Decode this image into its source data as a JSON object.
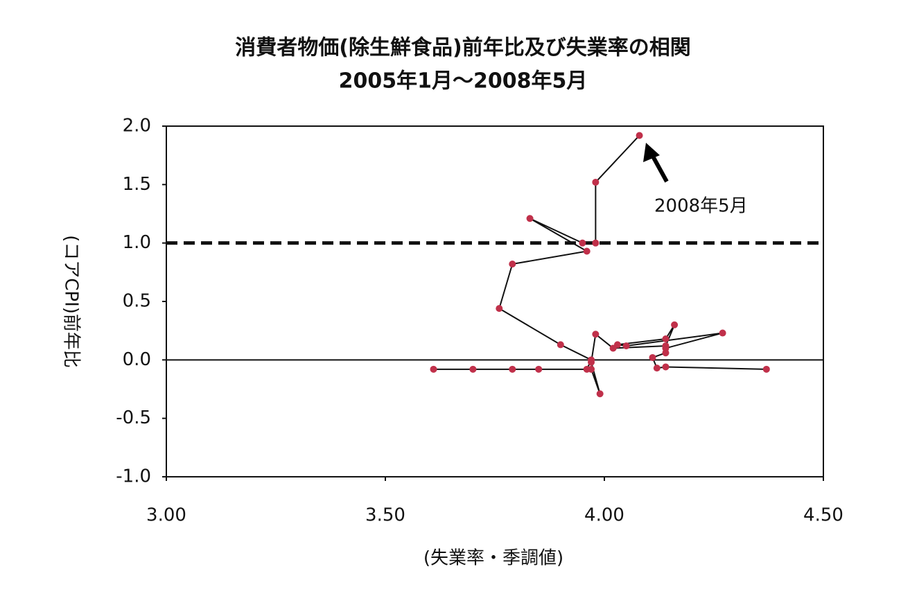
{
  "chart_data": {
    "type": "scatter",
    "title": "消費者物価(除生鮮食品)前年比及び失業率の相関",
    "subtitle": "2005年1月～2008年5月",
    "x_label": "(失業率・季調値)",
    "y_label": "(コアCPI)前年比",
    "annotation": "2008年5月",
    "x": [
      4.37,
      4.14,
      4.12,
      4.11,
      4.14,
      4.14,
      4.27,
      4.05,
      4.03,
      4.14,
      4.16,
      4.14,
      4.02,
      3.98,
      3.97,
      3.99,
      3.97,
      3.85,
      3.79,
      3.7,
      3.61,
      3.96,
      3.97,
      3.9,
      3.76,
      3.79,
      3.96,
      3.83,
      3.95,
      3.98,
      3.98,
      4.08
    ],
    "values": [
      -0.08,
      -0.06,
      -0.07,
      0.02,
      0.06,
      0.1,
      0.23,
      0.12,
      0.13,
      0.18,
      0.3,
      0.12,
      0.1,
      0.22,
      -0.02,
      -0.29,
      -0.08,
      -0.08,
      -0.08,
      -0.08,
      -0.08,
      -0.08,
      0.0,
      0.13,
      0.44,
      0.82,
      0.93,
      1.21,
      1.0,
      1.0,
      1.52,
      1.92
    ],
    "marker_color": "#c0304a",
    "line_color": "#111111",
    "xlim": [
      3.0,
      4.5
    ],
    "ylim": [
      -1.0,
      2.0
    ],
    "xticks": [
      {
        "value": 3.0,
        "label": "3.00"
      },
      {
        "value": 3.5,
        "label": "3.50"
      },
      {
        "value": 4.0,
        "label": "4.00"
      },
      {
        "value": 4.5,
        "label": "4.50"
      }
    ],
    "yticks": [
      {
        "value": 2.0,
        "label": "2.0"
      },
      {
        "value": 1.5,
        "label": "1.5"
      },
      {
        "value": 1.0,
        "label": "1.0"
      },
      {
        "value": 0.5,
        "label": "0.5"
      },
      {
        "value": 0.0,
        "label": "0.0"
      },
      {
        "value": -0.5,
        "label": "-0.5"
      },
      {
        "value": -1.0,
        "label": "-1.0"
      }
    ],
    "hlines": [
      {
        "value": 1.0,
        "style": "dashed"
      },
      {
        "value": 0.0,
        "style": "solid"
      }
    ]
  }
}
